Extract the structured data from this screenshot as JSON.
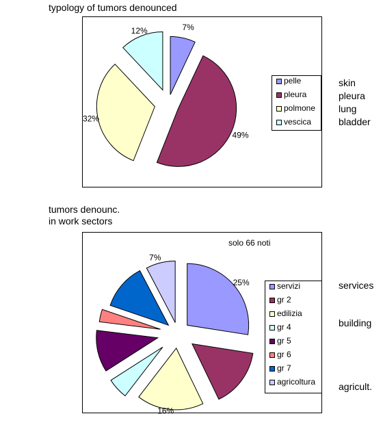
{
  "chart_data": [
    {
      "type": "pie",
      "title": "typology of tumors denounced",
      "categories": [
        "pelle",
        "pleura",
        "polmone",
        "vescica"
      ],
      "values": [
        7,
        49,
        32,
        12
      ],
      "labels": [
        "7%",
        "49%",
        "32%",
        "12%"
      ],
      "colors": [
        "#9999ff",
        "#993366",
        "#ffffcc",
        "#ccffff"
      ],
      "exploded": true,
      "legend_position": "right",
      "side_labels": [
        "skin",
        "pleura",
        "lung",
        "bladder"
      ]
    },
    {
      "type": "pie",
      "title": "tumors denounc.\nin work sectors",
      "title_lines": [
        "tumors denounc.",
        "in work sectors"
      ],
      "annotation": "solo 66 noti",
      "categories": [
        "servizi",
        "gr 2",
        "edilizia",
        "gr 4",
        "gr 5",
        "gr 6",
        "gr 7",
        "agricoltura"
      ],
      "values": [
        25,
        14,
        16,
        5,
        10,
        3,
        11,
        7
      ],
      "labels": [
        "25%",
        "",
        "16%",
        "",
        "",
        "",
        "",
        "7%"
      ],
      "colors": [
        "#9999ff",
        "#993366",
        "#ffffcc",
        "#ccffff",
        "#660066",
        "#ff8080",
        "#0066cc",
        "#ccccff"
      ],
      "exploded": true,
      "legend_position": "right",
      "side_labels": [
        "services",
        "building",
        "agricult."
      ]
    }
  ]
}
